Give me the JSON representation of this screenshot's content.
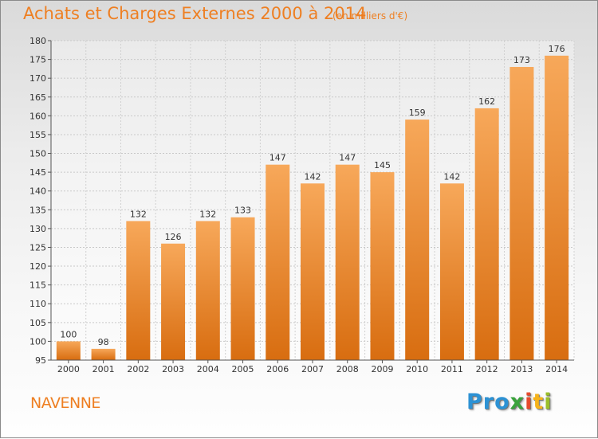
{
  "title": "Achats et Charges Externes 2000 à 2014",
  "subtitle": "(en milliers d'€)",
  "commune": "NAVENNE",
  "logo": [
    "Pro",
    "x",
    "i",
    "t",
    "i"
  ],
  "colors": {
    "accent": "#ee7f22",
    "bar_top": "#f7a85a",
    "bar_bottom": "#d86d10"
  },
  "chart_data": {
    "type": "bar",
    "title": "Achats et Charges Externes 2000 à 2014",
    "subtitle": "(en milliers d'€)",
    "categories": [
      "2000",
      "2001",
      "2002",
      "2003",
      "2004",
      "2005",
      "2006",
      "2007",
      "2008",
      "2009",
      "2010",
      "2011",
      "2012",
      "2013",
      "2014"
    ],
    "values": [
      100,
      98,
      132,
      126,
      132,
      133,
      147,
      142,
      147,
      145,
      159,
      142,
      162,
      173,
      176
    ],
    "ylim": [
      95,
      180
    ],
    "yticks": [
      95,
      100,
      105,
      110,
      115,
      120,
      125,
      130,
      135,
      140,
      145,
      150,
      155,
      160,
      165,
      170,
      175,
      180
    ],
    "grid": true,
    "legend": "none"
  }
}
